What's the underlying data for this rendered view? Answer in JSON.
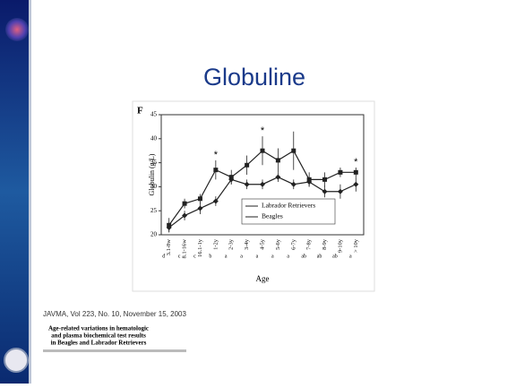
{
  "slide_title": "Globuline",
  "chart_data": {
    "type": "line",
    "panel_label": "F",
    "x_label": "Age",
    "y_label": "Globulin (g/L)",
    "categories": [
      "3.1-8w",
      "8.1-16w",
      "16.1-1y",
      "1-2y",
      "2-3y",
      "3-4y",
      "4-5y",
      "5-6y",
      "6-7y",
      "7-8y",
      "8-9y",
      "9-10y",
      "> 10y"
    ],
    "groups": [
      "d",
      "c",
      "c",
      "b",
      "a",
      "a",
      "a",
      "a",
      "a",
      "ab",
      "ab",
      "ab",
      "a"
    ],
    "significance": [
      null,
      null,
      null,
      "*",
      null,
      null,
      "*",
      null,
      null,
      null,
      null,
      null,
      "*"
    ],
    "ylim": [
      20,
      45
    ],
    "yticks": [
      20,
      25,
      30,
      35,
      40,
      45
    ],
    "legend": "lower right",
    "series": [
      {
        "name": "Labrador Retrievers",
        "marker": "diamond",
        "color": "#222222",
        "values": [
          21.5,
          24,
          25.5,
          27,
          31.5,
          30.5,
          30.5,
          32,
          30.5,
          31,
          29,
          29,
          30.5
        ],
        "errors": [
          1,
          1,
          1.2,
          1,
          1,
          1,
          1,
          1,
          1,
          1,
          1.2,
          1.5,
          1.5
        ]
      },
      {
        "name": "Beagles",
        "marker": "square",
        "color": "#222222",
        "values": [
          22,
          26.5,
          27.5,
          33.5,
          32,
          34.5,
          37.5,
          35.5,
          37.5,
          31.5,
          31.5,
          33,
          33
        ],
        "errors": [
          1.5,
          1,
          1,
          2,
          1.5,
          2,
          3,
          2.5,
          4,
          1.5,
          1.5,
          1,
          1
        ]
      }
    ]
  },
  "citation": {
    "journal": "JAVMA, Vol 223, No. 10, November 15, 2003",
    "article_lines": [
      "Age-related variations in hematologic",
      "and plasma biochemical test results",
      "in Beagles and Labrador Retrievers"
    ]
  }
}
